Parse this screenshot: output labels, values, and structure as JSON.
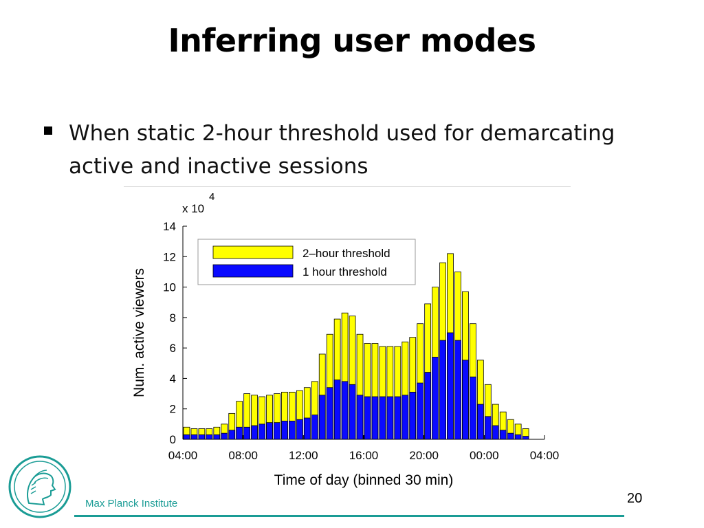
{
  "slide": {
    "title": "Inferring user modes",
    "bullet": "When static 2-hour threshold used for demarcating active and inactive sessions",
    "institute": "Max Planck Institute",
    "page_number": "20",
    "logo_icon": "minerva-head-logo-icon",
    "accent_color": "#1a9c95"
  },
  "chart_data": {
    "type": "bar",
    "xlabel": "Time of day (binned 30 min)",
    "ylabel": "Num. active viewers",
    "y_multiplier_label": "x 10",
    "y_multiplier_exponent": "4",
    "ylim": [
      0,
      14
    ],
    "yticks": [
      "0",
      "2",
      "4",
      "6",
      "8",
      "10",
      "12",
      "14"
    ],
    "xticks": [
      "04:00",
      "08:00",
      "12:00",
      "16:00",
      "20:00",
      "00:00",
      "04:00"
    ],
    "xticks_at_bin": [
      0,
      8,
      16,
      24,
      32,
      40,
      48
    ],
    "grid": false,
    "legend_position": "top-left",
    "series": [
      {
        "name": "2–hour threshold",
        "color": "#ffff00",
        "values": [
          0.8,
          0.7,
          0.7,
          0.7,
          0.8,
          1.0,
          1.7,
          2.5,
          3.0,
          2.9,
          2.8,
          2.9,
          3.0,
          3.1,
          3.1,
          3.2,
          3.4,
          3.8,
          5.6,
          6.9,
          7.9,
          8.3,
          8.1,
          6.9,
          6.3,
          6.3,
          6.1,
          6.1,
          6.1,
          6.4,
          6.7,
          7.6,
          8.9,
          10.0,
          11.6,
          12.2,
          11.0,
          9.7,
          7.6,
          5.2,
          3.6,
          2.3,
          1.8,
          1.3,
          1.0,
          0.7
        ]
      },
      {
        "name": "1 hour threshold",
        "color": "#0a0aff",
        "values": [
          0.3,
          0.3,
          0.3,
          0.3,
          0.3,
          0.4,
          0.6,
          0.8,
          0.8,
          0.9,
          1.0,
          1.1,
          1.1,
          1.2,
          1.2,
          1.3,
          1.4,
          1.6,
          2.9,
          3.4,
          3.9,
          3.8,
          3.6,
          2.9,
          2.8,
          2.8,
          2.8,
          2.8,
          2.8,
          2.9,
          3.1,
          3.7,
          4.4,
          5.4,
          6.5,
          7.0,
          6.5,
          5.2,
          4.1,
          2.3,
          1.5,
          0.9,
          0.6,
          0.4,
          0.3,
          0.2
        ]
      }
    ]
  }
}
